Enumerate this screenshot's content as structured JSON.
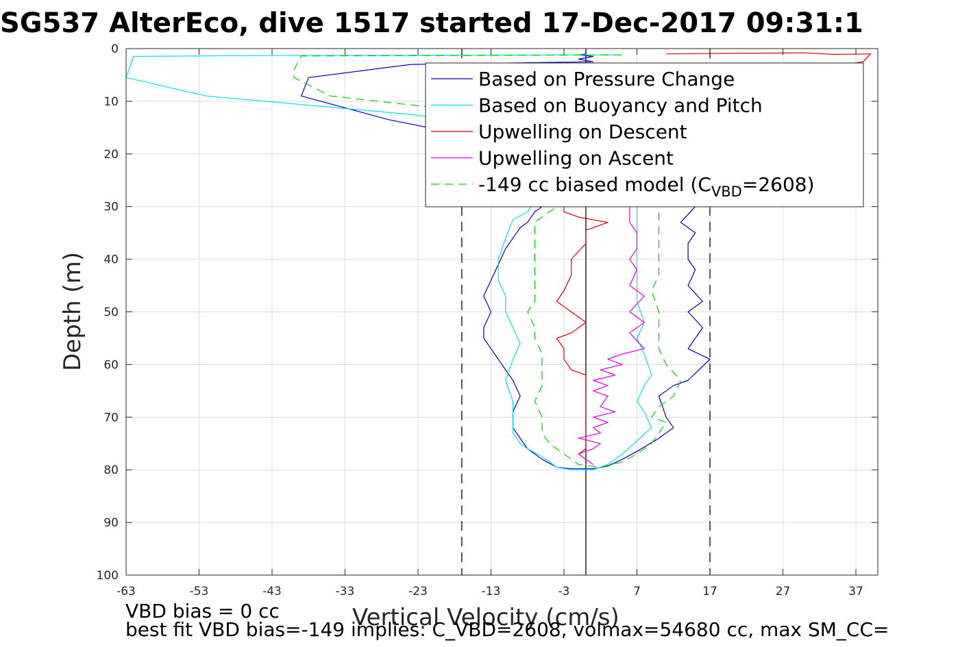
{
  "chart_data": {
    "type": "line",
    "title": "SG537 AlterEco, dive 1517 started 17-Dec-2017 09:31:1",
    "xlabel": "Vertical Velocity (cm/s)",
    "ylabel": "Depth (m)",
    "xlim": [
      -63,
      40
    ],
    "ylim": [
      0,
      100
    ],
    "y_reversed": true,
    "grid": true,
    "x_ticks": [
      -63,
      -53,
      -43,
      -33,
      -23,
      -13,
      -3,
      7,
      17,
      27,
      37
    ],
    "x_tick_labels": [
      "-63",
      "-53",
      "-43",
      "-33",
      "-23",
      "-13",
      "-3",
      "7",
      "17",
      "27",
      "37"
    ],
    "y_ticks": [
      0,
      10,
      20,
      30,
      40,
      50,
      60,
      70,
      80,
      90,
      100
    ],
    "y_tick_labels": [
      "0",
      "10",
      "20",
      "30",
      "40",
      "50",
      "60",
      "70",
      "80",
      "90",
      "100"
    ],
    "legend_placement": "top-right",
    "vertical_lines": [
      {
        "x": -17,
        "style": "dashed",
        "color": "#000000"
      },
      {
        "x": 0,
        "style": "solid",
        "color": "#000000"
      },
      {
        "x": 17,
        "style": "dashed",
        "color": "#000000"
      }
    ],
    "series": [
      {
        "name": "Based on Pressure Change",
        "color": "#0000cc",
        "dash": "",
        "points": [
          [
            0,
            1
          ],
          [
            -1,
            1.2
          ],
          [
            1,
            1.5
          ],
          [
            -1,
            2
          ],
          [
            1,
            2.5
          ],
          [
            -24,
            3
          ],
          [
            -38,
            5.5
          ],
          [
            -39,
            9
          ],
          [
            -27,
            13.5
          ],
          [
            -18,
            16
          ],
          [
            -12,
            18
          ],
          [
            -9,
            20
          ],
          [
            -6,
            25
          ],
          [
            -5,
            29
          ],
          [
            -6,
            30
          ],
          [
            -7,
            31
          ],
          [
            -8,
            33
          ],
          [
            -9,
            34
          ],
          [
            -10,
            36
          ],
          [
            -11,
            38
          ],
          [
            -12,
            41
          ],
          [
            -13,
            44
          ],
          [
            -14,
            47
          ],
          [
            -13,
            50
          ],
          [
            -14,
            53
          ],
          [
            -14,
            55
          ],
          [
            -13,
            57
          ],
          [
            -12,
            59
          ],
          [
            -11,
            61
          ],
          [
            -10,
            63
          ],
          [
            -9,
            66
          ],
          [
            -10,
            69
          ],
          [
            -10,
            72
          ],
          [
            -9,
            74
          ],
          [
            -8,
            76
          ],
          [
            -6,
            78
          ],
          [
            -4,
            79.5
          ],
          [
            -2,
            79.8
          ],
          [
            1,
            79.8
          ],
          [
            3,
            79.3
          ],
          [
            5,
            78
          ],
          [
            7,
            76.5
          ],
          [
            10,
            74
          ],
          [
            12,
            72
          ],
          [
            11,
            70
          ],
          [
            10,
            66
          ],
          [
            12,
            64
          ],
          [
            14,
            63
          ],
          [
            17,
            59
          ],
          [
            14,
            57
          ],
          [
            16,
            53
          ],
          [
            14,
            50
          ],
          [
            16,
            48
          ],
          [
            14,
            45
          ],
          [
            15,
            42
          ],
          [
            14,
            40
          ],
          [
            14,
            37
          ],
          [
            15,
            35
          ],
          [
            13,
            33
          ],
          [
            15,
            30
          ],
          [
            14,
            27
          ]
        ]
      },
      {
        "name": "Based on Buoyancy and Pitch",
        "color": "#00e5e5",
        "dash": "",
        "points": [
          [
            4,
            1.2
          ],
          [
            -45,
            1.3
          ],
          [
            -62,
            1.5
          ],
          [
            -63,
            5.5
          ],
          [
            -52,
            9
          ],
          [
            -36,
            11
          ],
          [
            -24,
            12.5
          ],
          [
            -16,
            14
          ],
          [
            -12,
            16
          ],
          [
            -9,
            20
          ],
          [
            -7,
            25
          ],
          [
            -7,
            29
          ],
          [
            -8,
            31
          ],
          [
            -10,
            32.5
          ],
          [
            -11,
            36
          ],
          [
            -12,
            40
          ],
          [
            -12,
            44
          ],
          [
            -11,
            47
          ],
          [
            -11,
            50
          ],
          [
            -10,
            53
          ],
          [
            -9,
            56
          ],
          [
            -10,
            59
          ],
          [
            -11,
            63
          ],
          [
            -10,
            67
          ],
          [
            -10,
            70
          ],
          [
            -10,
            73
          ],
          [
            -9,
            75
          ],
          [
            -8,
            76
          ],
          [
            -6,
            77.5
          ],
          [
            -4,
            79.5
          ],
          [
            -2,
            80
          ],
          [
            1,
            80
          ],
          [
            3,
            79
          ],
          [
            5,
            77
          ],
          [
            7,
            74.5
          ],
          [
            9,
            72
          ],
          [
            8,
            69
          ],
          [
            7,
            67
          ],
          [
            8,
            64
          ],
          [
            9,
            62
          ],
          [
            8,
            58
          ],
          [
            7,
            55
          ],
          [
            8,
            52
          ],
          [
            7,
            48
          ],
          [
            7,
            44
          ],
          [
            7,
            40
          ],
          [
            7,
            36
          ],
          [
            7,
            32
          ],
          [
            7,
            29
          ]
        ]
      },
      {
        "name": "Upwelling on Descent",
        "color": "#dd0000",
        "dash": "",
        "points": [
          [
            11,
            1
          ],
          [
            20,
            0.9
          ],
          [
            30,
            0.8
          ],
          [
            34,
            1.1
          ],
          [
            39,
            1
          ],
          [
            38,
            2.5
          ],
          [
            33,
            3.5
          ],
          [
            27,
            4.5
          ],
          [
            20,
            6
          ],
          [
            12,
            8
          ],
          [
            5,
            10
          ],
          [
            2,
            15
          ],
          [
            1,
            20
          ],
          [
            -2,
            25
          ],
          [
            -3,
            29
          ],
          [
            -3,
            31
          ],
          [
            -1,
            32
          ],
          [
            3,
            33
          ],
          [
            0,
            34.5
          ],
          [
            0,
            37
          ],
          [
            -2,
            40
          ],
          [
            -2,
            43
          ],
          [
            -3,
            46
          ],
          [
            -4,
            48
          ],
          [
            -2,
            50
          ],
          [
            0,
            52
          ],
          [
            -2,
            54
          ],
          [
            -4,
            55
          ],
          [
            -3,
            57
          ],
          [
            -3,
            59
          ],
          [
            -2,
            61
          ],
          [
            0,
            62
          ],
          [
            0,
            65
          ],
          [
            0,
            70
          ],
          [
            0,
            73
          ],
          [
            0,
            76
          ],
          [
            -1,
            77
          ],
          [
            0,
            78
          ]
        ]
      },
      {
        "name": "Upwelling on Ascent",
        "color": "#e500e5",
        "dash": "",
        "points": [
          [
            -3,
            2.5
          ],
          [
            -2,
            4
          ],
          [
            3,
            6
          ],
          [
            6,
            10
          ],
          [
            7,
            15
          ],
          [
            6,
            20
          ],
          [
            6,
            25
          ],
          [
            6,
            30
          ],
          [
            6,
            31
          ],
          [
            6,
            33
          ],
          [
            7,
            35
          ],
          [
            7,
            38
          ],
          [
            6,
            40
          ],
          [
            7,
            42
          ],
          [
            6,
            45
          ],
          [
            8,
            47
          ],
          [
            6,
            50
          ],
          [
            8,
            52
          ],
          [
            6,
            54
          ],
          [
            8,
            57
          ],
          [
            5,
            58
          ],
          [
            3,
            59
          ],
          [
            5,
            60
          ],
          [
            2,
            61
          ],
          [
            4,
            62
          ],
          [
            1,
            63
          ],
          [
            3,
            64
          ],
          [
            1,
            65
          ],
          [
            3,
            66
          ],
          [
            2,
            68
          ],
          [
            4,
            69
          ],
          [
            1,
            70
          ],
          [
            3,
            71
          ],
          [
            1,
            72
          ],
          [
            2,
            73
          ],
          [
            -1,
            74
          ],
          [
            2,
            75
          ],
          [
            1,
            76
          ],
          [
            -1,
            77
          ],
          [
            0,
            78
          ],
          [
            1,
            79
          ]
        ]
      },
      {
        "name": "-149 cc biased model (C_VBD=2608)",
        "color": "#00d000",
        "dash": "12,8",
        "points": [
          [
            5,
            1.2
          ],
          [
            -39,
            1.4
          ],
          [
            -40,
            4
          ],
          [
            -40,
            5.5
          ],
          [
            -35,
            9
          ],
          [
            -22,
            11
          ],
          [
            -18,
            13
          ],
          [
            -14,
            15
          ],
          [
            -11,
            17
          ],
          [
            -9,
            20
          ],
          [
            -7,
            25
          ],
          [
            -4,
            29
          ],
          [
            -4,
            30
          ],
          [
            -5,
            31
          ],
          [
            -7,
            33
          ],
          [
            -7,
            36
          ],
          [
            -7,
            39
          ],
          [
            -7,
            42
          ],
          [
            -7,
            45
          ],
          [
            -7,
            48
          ],
          [
            -8,
            50
          ],
          [
            -7,
            53
          ],
          [
            -7,
            55
          ],
          [
            -6,
            58
          ],
          [
            -6,
            61
          ],
          [
            -6,
            64
          ],
          [
            -7,
            67
          ],
          [
            -6,
            70
          ],
          [
            -6,
            73
          ],
          [
            -5,
            75
          ],
          [
            -3,
            77
          ],
          [
            -2,
            78
          ],
          [
            -1,
            79
          ],
          [
            2,
            79.5
          ],
          [
            5,
            78.5
          ],
          [
            7,
            77
          ],
          [
            9,
            75
          ],
          [
            10,
            73
          ],
          [
            11,
            71
          ],
          [
            9,
            70
          ],
          [
            10,
            68
          ],
          [
            12,
            66
          ],
          [
            13,
            63
          ],
          [
            11,
            60
          ],
          [
            10,
            57
          ],
          [
            10,
            54
          ],
          [
            10,
            50
          ],
          [
            9,
            46
          ],
          [
            10,
            43
          ],
          [
            10,
            40
          ],
          [
            10,
            37
          ],
          [
            10,
            34
          ],
          [
            10,
            31
          ],
          [
            10,
            29
          ]
        ]
      }
    ],
    "legend": [
      {
        "text": "Based on Pressure Change",
        "color": "#0000cc",
        "dash": ""
      },
      {
        "text": "Based on Buoyancy and Pitch",
        "color": "#00e5e5",
        "dash": ""
      },
      {
        "text": "Upwelling on Descent",
        "color": "#dd0000",
        "dash": ""
      },
      {
        "text": "Upwelling on Ascent",
        "color": "#e500e5",
        "dash": ""
      },
      {
        "text_pre": "-149 cc biased model (C",
        "text_sub": "VBD",
        "text_post": "=2608)",
        "color": "#00d000",
        "dash": "12,8"
      }
    ],
    "annotations": [
      "VBD bias = 0 cc",
      "best fit VBD bias=-149 implies: C_VBD=2608, volmax=54680 cc, max SM_CC="
    ]
  }
}
